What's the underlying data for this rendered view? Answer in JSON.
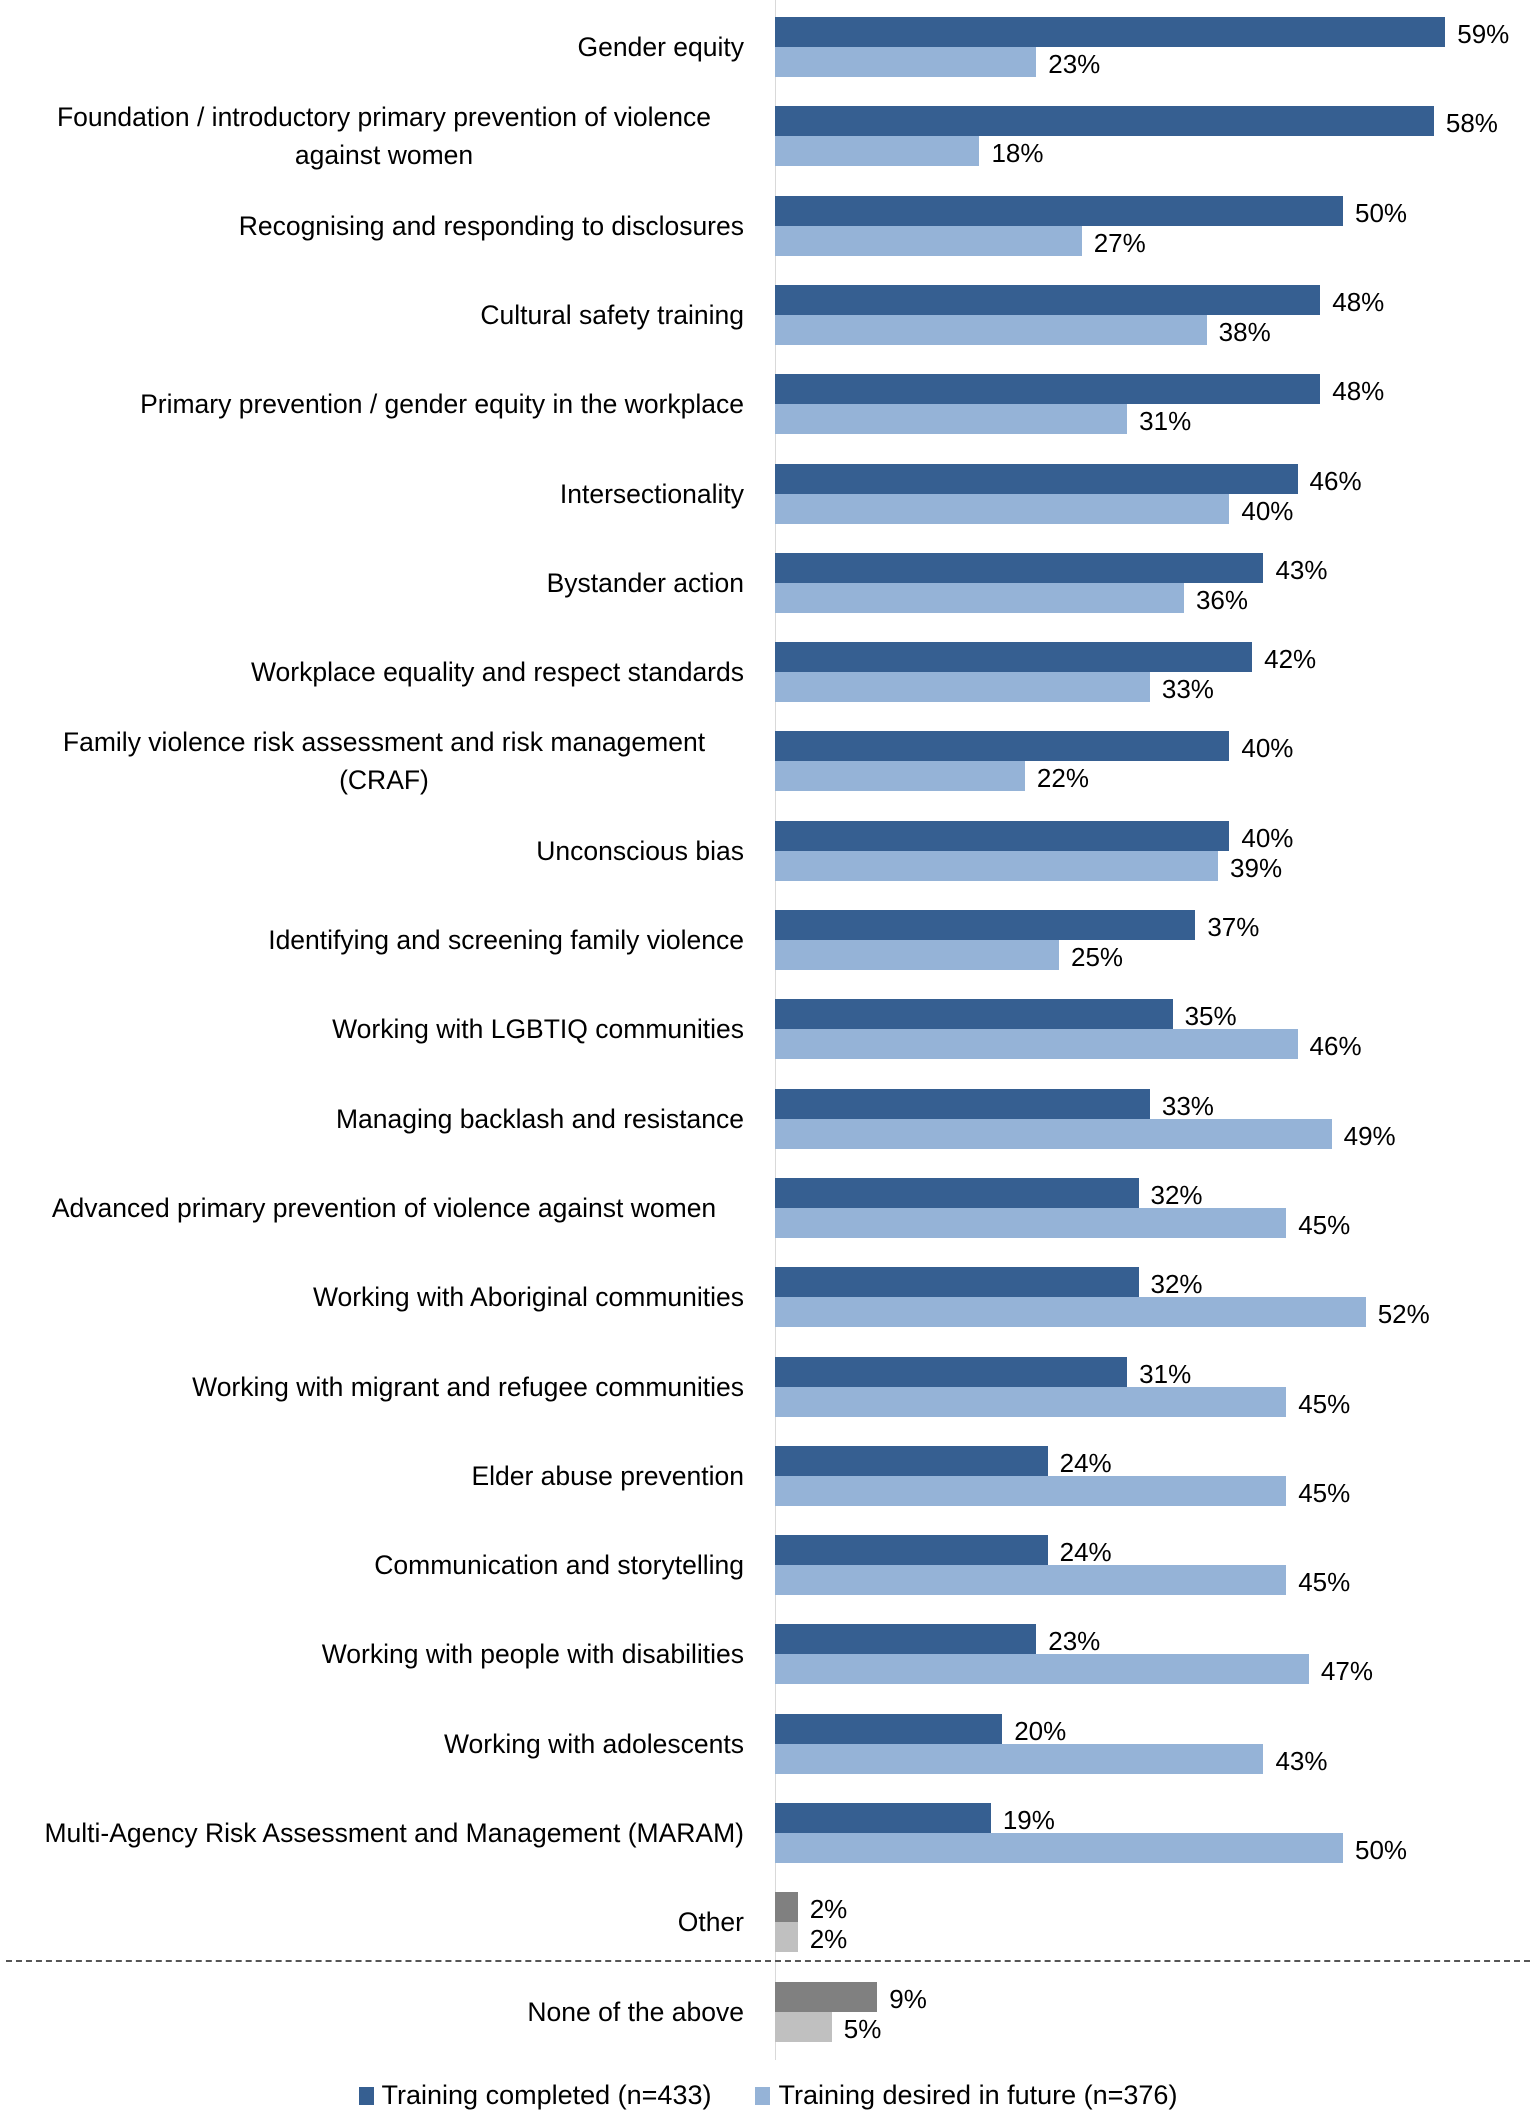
{
  "chart_data": {
    "type": "bar",
    "orientation": "horizontal",
    "categories": [
      "Gender equity",
      "Foundation / introductory primary prevention of violence against women",
      "Recognising and responding to disclosures",
      "Cultural safety training",
      "Primary prevention / gender equity in the workplace",
      "Intersectionality",
      "Bystander action",
      "Workplace equality and respect standards",
      "Family violence risk assessment and risk management (CRAF)",
      "Unconscious bias",
      "Identifying and screening family violence",
      "Working with LGBTIQ communities",
      "Managing backlash and resistance",
      "Advanced primary prevention of violence against women",
      "Working with Aboriginal communities",
      "Working with migrant and refugee communities",
      "Elder abuse prevention",
      "Communication and storytelling",
      "Working with people with disabilities",
      "Working with adolescents",
      "Multi-Agency Risk Assessment and Management (MARAM)",
      "Other",
      "None of the above"
    ],
    "series": [
      {
        "name": "Training completed (n=433)",
        "color": "#365F91",
        "alt_color": "#808080",
        "values": [
          59,
          58,
          50,
          48,
          48,
          46,
          43,
          42,
          40,
          40,
          37,
          35,
          33,
          32,
          32,
          31,
          24,
          24,
          23,
          20,
          19,
          2,
          9
        ],
        "labels": [
          "59%",
          "58%",
          "50%",
          "48%",
          "48%",
          "46%",
          "43%",
          "42%",
          "40%",
          "40%",
          "37%",
          "35%",
          "33%",
          "32%",
          "32%",
          "31%",
          "24%",
          "24%",
          "23%",
          "20%",
          "19%",
          "2%",
          "9%"
        ]
      },
      {
        "name": "Training desired in future (n=376)",
        "color": "#95B3D7",
        "alt_color": "#C0C0C0",
        "values": [
          23,
          18,
          27,
          38,
          31,
          40,
          36,
          33,
          22,
          39,
          25,
          46,
          49,
          45,
          52,
          45,
          45,
          45,
          47,
          43,
          50,
          2,
          5
        ],
        "labels": [
          "23%",
          "18%",
          "27%",
          "38%",
          "31%",
          "40%",
          "36%",
          "33%",
          "22%",
          "39%",
          "25%",
          "46%",
          "49%",
          "45%",
          "52%",
          "45%",
          "45%",
          "45%",
          "47%",
          "43%",
          "50%",
          "2%",
          "5%"
        ]
      }
    ],
    "gray_categories": [
      "Other",
      "None of the above"
    ],
    "value_unit": "%",
    "legend_position": "bottom",
    "grid": false
  }
}
